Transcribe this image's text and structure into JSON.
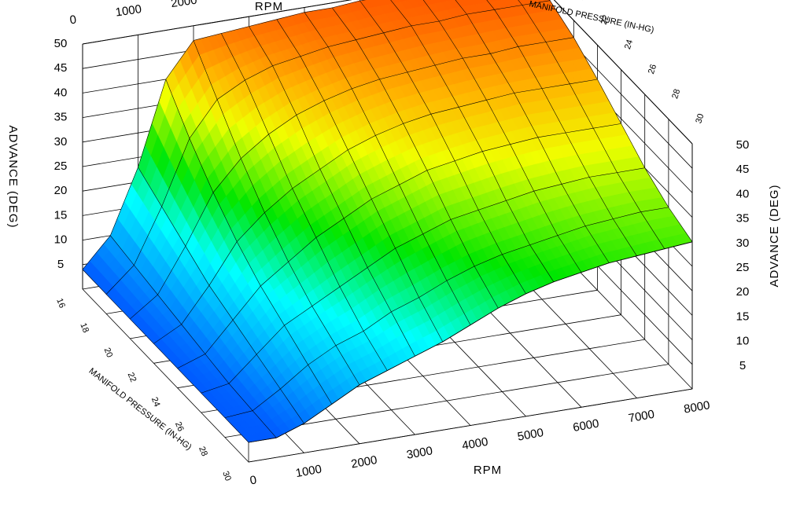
{
  "chart_data": {
    "type": "surface",
    "title": "",
    "x_axis": {
      "label": "RPM",
      "ticks": [
        "0",
        "1000",
        "2000",
        "3000",
        "4000",
        "5000",
        "6000",
        "7000",
        "8000"
      ],
      "range": [
        0,
        8000
      ]
    },
    "y_axis": {
      "label": "MANIFOLD PRESSURE (IN-HG)",
      "ticks": [
        "16",
        "18",
        "20",
        "22",
        "24",
        "26",
        "28",
        "30"
      ],
      "range": [
        16,
        30
      ]
    },
    "z_axis": {
      "label": "ADVANCE  (DEG)",
      "ticks": [
        "5",
        "10",
        "15",
        "20",
        "25",
        "30",
        "35",
        "40",
        "45",
        "50"
      ],
      "range": [
        0,
        50
      ]
    },
    "grid": true,
    "rpm": [
      0,
      500,
      1000,
      1500,
      2000,
      2500,
      3000,
      3500,
      4000,
      4500,
      5000,
      5500,
      6000,
      6500,
      7000,
      7500,
      8000
    ],
    "map": [
      16,
      18,
      20,
      22,
      24,
      26,
      28,
      30
    ],
    "advance": [
      [
        4,
        10,
        23,
        40,
        47,
        47.5,
        48,
        48.5,
        49,
        49,
        49.5,
        49.5,
        50,
        50,
        50,
        50,
        50
      ],
      [
        4,
        9,
        20,
        33,
        40,
        43,
        45,
        46,
        47,
        47.5,
        48,
        48.5,
        48.5,
        49,
        49,
        49,
        49
      ],
      [
        4,
        8,
        17,
        27,
        33,
        37,
        40,
        42,
        43.5,
        44.5,
        45,
        45.5,
        46,
        46,
        46.5,
        46.5,
        46.5
      ],
      [
        4,
        7,
        14,
        22,
        27,
        31,
        34,
        37,
        39,
        40.5,
        41.5,
        42,
        42.5,
        43,
        43,
        43,
        43
      ],
      [
        4,
        6,
        12,
        18,
        22,
        26,
        29,
        32,
        34,
        36,
        37,
        38,
        38.5,
        39,
        39,
        39,
        39
      ],
      [
        4,
        5,
        10,
        15,
        18,
        21,
        24,
        27,
        29,
        31,
        32,
        33,
        34,
        34.5,
        35,
        35,
        35
      ],
      [
        4,
        4.5,
        8,
        12,
        15,
        17,
        20,
        22,
        24.5,
        26.5,
        28,
        29,
        30,
        31,
        31.5,
        32,
        32
      ],
      [
        4,
        4,
        6,
        9,
        12,
        14,
        16,
        18,
        20.5,
        23,
        25,
        26.5,
        27.5,
        28.5,
        29,
        29.5,
        30
      ]
    ]
  }
}
